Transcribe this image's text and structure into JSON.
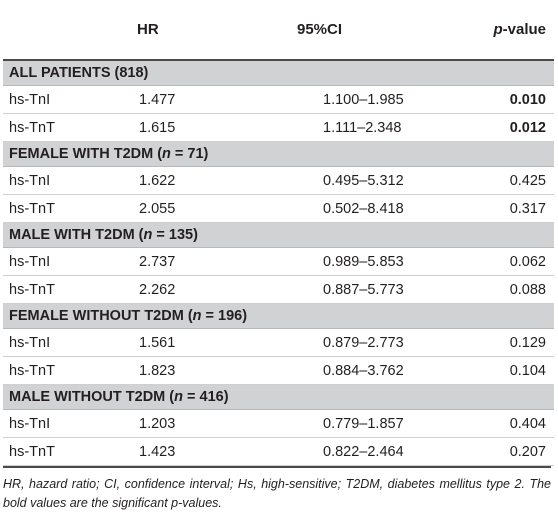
{
  "header": {
    "col1": "",
    "col2": "HR",
    "col3": "95%CI",
    "col4_italic": "p",
    "col4_rest": "-value"
  },
  "groups": [
    {
      "title": "ALL PATIENTS (818)",
      "rows": [
        {
          "label": "hs-TnI",
          "hr": "1.477",
          "ci": "1.100–1.985",
          "p": "0.010",
          "sig": true
        },
        {
          "label": "hs-TnT",
          "hr": "1.615",
          "ci": "1.111–2.348",
          "p": "0.012",
          "sig": true
        }
      ]
    },
    {
      "title_prefix": "FEMALE WITH T2DM (",
      "title_n": "n",
      "title_suffix": " = 71)",
      "rows": [
        {
          "label": "hs-TnI",
          "hr": "1.622",
          "ci": "0.495–5.312",
          "p": "0.425",
          "sig": false
        },
        {
          "label": "hs-TnT",
          "hr": "2.055",
          "ci": "0.502–8.418",
          "p": "0.317",
          "sig": false
        }
      ]
    },
    {
      "title_prefix": "MALE WITH T2DM (",
      "title_n": "n",
      "title_suffix": " = 135)",
      "rows": [
        {
          "label": "hs-TnI",
          "hr": "2.737",
          "ci": "0.989–5.853",
          "p": "0.062",
          "sig": false
        },
        {
          "label": "hs-TnT",
          "hr": "2.262",
          "ci": "0.887–5.773",
          "p": "0.088",
          "sig": false
        }
      ]
    },
    {
      "title_prefix": "FEMALE WITHOUT T2DM (",
      "title_n": "n",
      "title_suffix": " = 196)",
      "rows": [
        {
          "label": "hs-TnI",
          "hr": "1.561",
          "ci": "0.879–2.773",
          "p": "0.129",
          "sig": false
        },
        {
          "label": "hs-TnT",
          "hr": "1.823",
          "ci": "0.884–3.762",
          "p": "0.104",
          "sig": false
        }
      ]
    },
    {
      "title_prefix": "MALE WITHOUT T2DM (",
      "title_n": "n",
      "title_suffix": " = 416)",
      "rows": [
        {
          "label": "hs-TnI",
          "hr": "1.203",
          "ci": "0.779–1.857",
          "p": "0.404",
          "sig": false
        },
        {
          "label": "hs-TnT",
          "hr": "1.423",
          "ci": "0.822–2.464",
          "p": "0.207",
          "sig": false
        }
      ]
    }
  ],
  "footnote_a": "HR, hazard ratio; CI, confidence interval; Hs, high-sensitive; T2DM, diabetes mellitus type 2. The bold values are the significant ",
  "footnote_b": "p",
  "footnote_c": "-values."
}
